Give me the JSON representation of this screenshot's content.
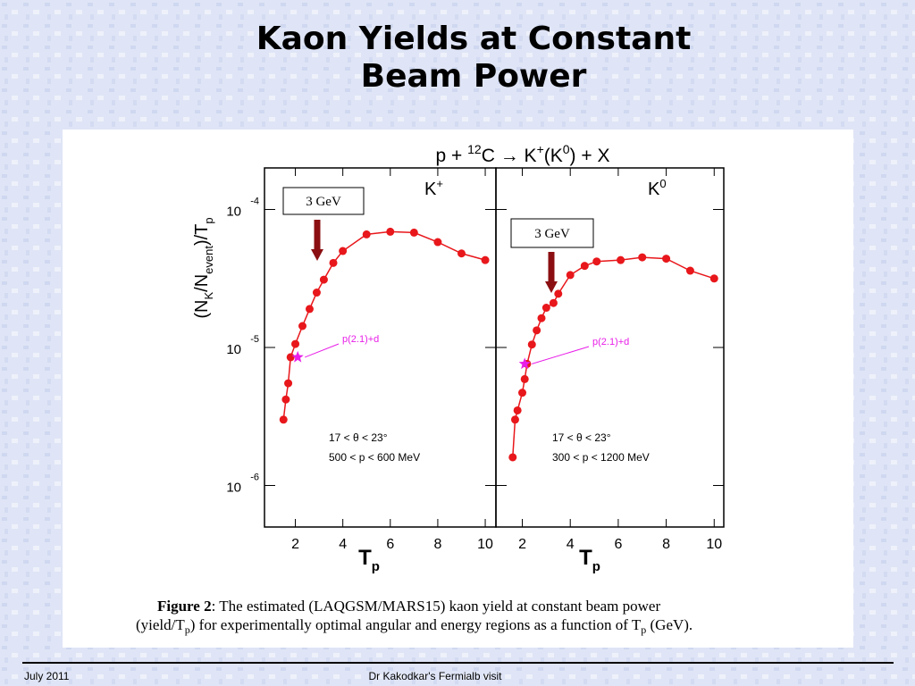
{
  "title_lines": [
    "Kaon Yields at Constant",
    "Beam Power"
  ],
  "figure_title": [
    "p + ",
    "12",
    "C → K",
    "+",
    "(K",
    "0",
    ") + X"
  ],
  "ylabel": [
    "(N",
    "K",
    "/N",
    "event",
    ")/T",
    "p"
  ],
  "xlabel": [
    "T",
    "p"
  ],
  "caption": {
    "label": "Figure 2",
    "line1": ": The estimated (LAQGSM/MARS15) kaon yield at constant beam power",
    "line2": [
      "(yield/T",
      "p",
      ")  for experimentally optimal angular and energy regions as a function of T",
      "p",
      " (GeV)."
    ]
  },
  "footer": {
    "date": "July 2011",
    "center": "Dr Kakodkar's Fermialb visit"
  },
  "chart_data": [
    {
      "type": "line",
      "panel_label": [
        "K",
        "+"
      ],
      "color": "#e8171b",
      "log_y": true,
      "xlim": [
        0.7,
        10.45
      ],
      "xticks": [
        2,
        4,
        6,
        8,
        10
      ],
      "ylim": [
        5e-07,
        0.0002
      ],
      "yticks": [
        {
          "value": 1e-06,
          "label": "10",
          "exponent": "-6"
        },
        {
          "value": 1e-05,
          "label": "10",
          "exponent": "-5"
        },
        {
          "value": 0.0001,
          "label": "10",
          "exponent": "-4"
        }
      ],
      "x": [
        1.5,
        1.6,
        1.7,
        1.8,
        2.0,
        2.3,
        2.6,
        2.9,
        3.2,
        3.6,
        4.0,
        5.0,
        6.0,
        7.0,
        8.0,
        9.0,
        10.0
      ],
      "values": [
        3e-06,
        4.2e-06,
        5.5e-06,
        8.5e-06,
        1.06e-05,
        1.43e-05,
        1.9e-05,
        2.5e-05,
        3.1e-05,
        4.1e-05,
        5e-05,
        6.6e-05,
        6.9e-05,
        6.8e-05,
        5.8e-05,
        4.8e-05,
        4.3e-05
      ],
      "marker": {
        "label": "p(2.1)+d",
        "x": 2.1,
        "y": 8.5e-06
      },
      "energy_box": "3 GeV",
      "cuts": [
        "17 < θ < 23°",
        "500 < p < 600 MeV"
      ]
    },
    {
      "type": "line",
      "panel_label": [
        "K",
        "0"
      ],
      "color": "#e8171b",
      "log_y": true,
      "xlim": [
        0.9,
        10.4
      ],
      "xticks": [
        2,
        4,
        6,
        8,
        10
      ],
      "ylim": [
        5e-07,
        0.0002
      ],
      "yticks": [
        1e-06,
        1e-05,
        0.0001
      ],
      "x": [
        1.6,
        1.7,
        1.8,
        2.0,
        2.1,
        2.2,
        2.4,
        2.6,
        2.8,
        3.0,
        3.3,
        3.5,
        4.0,
        4.6,
        5.1,
        6.1,
        7.0,
        8.0,
        9.0,
        10.0
      ],
      "values": [
        1.6e-06,
        3e-06,
        3.5e-06,
        4.7e-06,
        5.9e-06,
        7.6e-06,
        1.05e-05,
        1.33e-05,
        1.63e-05,
        1.94e-05,
        2.1e-05,
        2.45e-05,
        3.35e-05,
        3.9e-05,
        4.2e-05,
        4.3e-05,
        4.5e-05,
        4.4e-05,
        3.6e-05,
        3.16e-05
      ],
      "marker": {
        "label": "p(2.1)+d",
        "x": 2.1,
        "y": 7.6e-06
      },
      "energy_box": "3 GeV",
      "cuts": [
        "17 < θ < 23°",
        "300 < p < 1200 MeV"
      ]
    }
  ]
}
